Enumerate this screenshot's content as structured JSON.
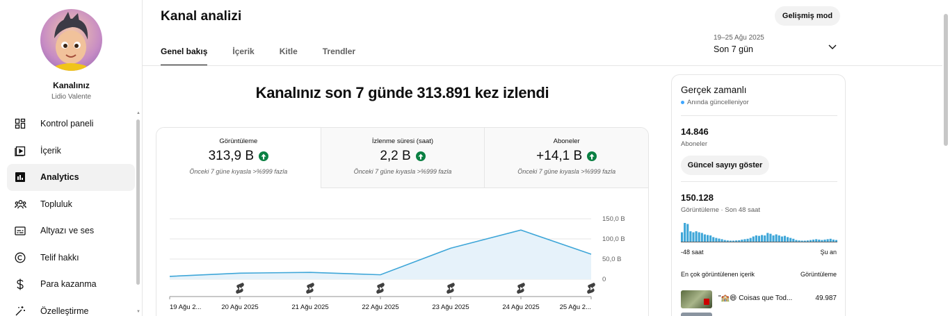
{
  "sidebar": {
    "channel_title": "Kanalınız",
    "channel_name": "Lidio Valente",
    "items": [
      {
        "label": "Kontrol paneli",
        "icon": "dashboard-icon"
      },
      {
        "label": "İçerik",
        "icon": "content-icon"
      },
      {
        "label": "Analytics",
        "icon": "analytics-icon",
        "active": true
      },
      {
        "label": "Topluluk",
        "icon": "community-icon"
      },
      {
        "label": "Altyazı ve ses",
        "icon": "subtitles-icon"
      },
      {
        "label": "Telif hakkı",
        "icon": "copyright-icon"
      },
      {
        "label": "Para kazanma",
        "icon": "dollar-icon"
      },
      {
        "label": "Özelleştirme",
        "icon": "magic-wand-icon"
      }
    ]
  },
  "header": {
    "title": "Kanal analizi",
    "advanced_mode": "Gelişmiş mod",
    "tabs": [
      {
        "label": "Genel bakış",
        "active": true
      },
      {
        "label": "İçerik"
      },
      {
        "label": "Kitle"
      },
      {
        "label": "Trendler"
      }
    ],
    "date_range": "19–25 Ağu 2025",
    "period": "Son 7 gün"
  },
  "main": {
    "headline": "Kanalınız son 7 günde 313.891 kez izlendi",
    "metrics": [
      {
        "label": "Görüntüleme",
        "value": "313,9 B",
        "compare": "Önceki 7 güne kıyasla >%999 fazla"
      },
      {
        "label": "İzlenme süresi (saat)",
        "value": "2,2 B",
        "compare": "Önceki 7 güne kıyasla >%999 fazla"
      },
      {
        "label": "Aboneler",
        "value": "+14,1 B",
        "compare": "Önceki 7 güne kıyasla >%999 fazla"
      }
    ]
  },
  "chart_data": {
    "type": "area",
    "x": [
      "19 Ağu 2...",
      "20 Ağu 2025",
      "21 Ağu 2025",
      "22 Ağu 2025",
      "23 Ağu 2025",
      "24 Ağu 2025",
      "25 Ağu 2..."
    ],
    "series": [
      {
        "values": [
          7000,
          15000,
          17000,
          11000,
          77000,
          122000,
          62000
        ]
      }
    ],
    "y_ticks": [
      "0",
      "50,0 B",
      "100,0 B",
      "150,0 B"
    ],
    "ylim": [
      0,
      150000
    ],
    "grid": true,
    "accent_color": "#3ea6d8",
    "fill_color": "#e6f2fa"
  },
  "realtime": {
    "title": "Gerçek zamanlı",
    "live_text": "Anında güncelleniyor",
    "subscribers": "14.846",
    "subscribers_label": "Aboneler",
    "show_count_button": "Güncel sayıyı göster",
    "views": "150.128",
    "views_label": "Görüntüleme · Son 48 saat",
    "axis_left": "-48 saat",
    "axis_right": "Şu an",
    "mini_bars": [
      0.45,
      0.9,
      0.85,
      0.5,
      0.45,
      0.5,
      0.45,
      0.42,
      0.35,
      0.32,
      0.3,
      0.22,
      0.18,
      0.15,
      0.12,
      0.08,
      0.06,
      0.05,
      0.05,
      0.06,
      0.07,
      0.1,
      0.12,
      0.14,
      0.18,
      0.25,
      0.3,
      0.28,
      0.32,
      0.3,
      0.42,
      0.38,
      0.3,
      0.35,
      0.3,
      0.25,
      0.28,
      0.22,
      0.18,
      0.14,
      0.08,
      0.06,
      0.05,
      0.05,
      0.06,
      0.08,
      0.1,
      0.12,
      0.1,
      0.08,
      0.1,
      0.12,
      0.14,
      0.1,
      0.08
    ],
    "top_content_label": "En çok görüntülenen içerik",
    "top_content_col": "Görüntüleme",
    "top_items": [
      {
        "title": "\"🏫😄 Coisas que Tod...",
        "views": "49.987"
      }
    ]
  }
}
